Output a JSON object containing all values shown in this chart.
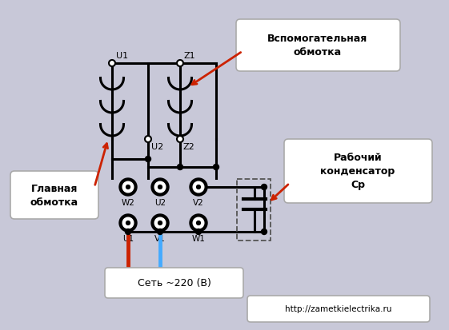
{
  "bg_color": "#c8c8d8",
  "fig_bg": "#c8c8d8",
  "url_text": "http://zametkielectrika.ru",
  "net_text": "Сеть ~220 (В)",
  "label_glavnaya": "Главная\nобмотка",
  "label_vspomog": "Вспомогательная\nобмотка",
  "label_cond": "Рабочий\nконденсатор\nСр",
  "line_color": "#000000",
  "red_color": "#cc2200",
  "blue_color": "#44aaff",
  "arrow_color": "#cc2200",
  "dashed_box_color": "#555555",
  "white": "#ffffff",
  "label_box_edge": "#aaaaaa"
}
